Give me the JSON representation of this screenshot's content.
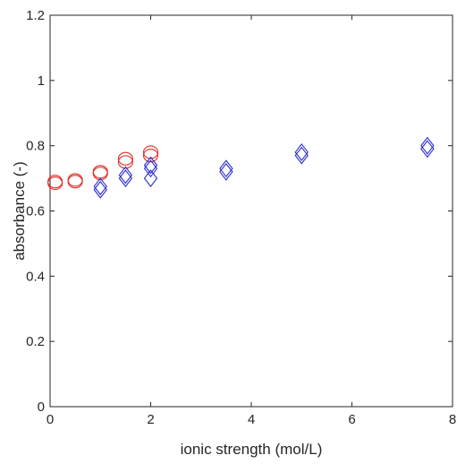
{
  "chart_data": {
    "type": "scatter",
    "xlabel": "ionic strength (mol/L)",
    "ylabel": "absorbance (-)",
    "xlim": [
      0,
      8
    ],
    "ylim": [
      0,
      1.2
    ],
    "xticks": [
      0,
      2,
      4,
      6,
      8
    ],
    "yticks": [
      0,
      0.2,
      0.4,
      0.6,
      0.8,
      1,
      1.2
    ],
    "xtick_labels": [
      "0",
      "2",
      "4",
      "6",
      "8"
    ],
    "ytick_labels": [
      "0",
      "0.2",
      "0.4",
      "0.6",
      "0.8",
      "1",
      "1.2"
    ],
    "grid": false,
    "legend": "none",
    "series": [
      {
        "color": "#e0302a",
        "marker": "circle",
        "points": [
          {
            "x": 0.1,
            "y": 0.685
          },
          {
            "x": 0.1,
            "y": 0.69
          },
          {
            "x": 0.5,
            "y": 0.69
          },
          {
            "x": 0.5,
            "y": 0.695
          },
          {
            "x": 1.0,
            "y": 0.715
          },
          {
            "x": 1.0,
            "y": 0.72
          },
          {
            "x": 1.5,
            "y": 0.75
          },
          {
            "x": 1.5,
            "y": 0.76
          },
          {
            "x": 2.0,
            "y": 0.77
          },
          {
            "x": 2.0,
            "y": 0.78
          }
        ]
      },
      {
        "color": "#2a2ad0",
        "marker": "diamond",
        "points": [
          {
            "x": 1.0,
            "y": 0.665
          },
          {
            "x": 1.0,
            "y": 0.675
          },
          {
            "x": 1.5,
            "y": 0.7
          },
          {
            "x": 1.5,
            "y": 0.71
          },
          {
            "x": 2.0,
            "y": 0.7
          },
          {
            "x": 2.0,
            "y": 0.73
          },
          {
            "x": 2.0,
            "y": 0.74
          },
          {
            "x": 3.5,
            "y": 0.72
          },
          {
            "x": 3.5,
            "y": 0.73
          },
          {
            "x": 5.0,
            "y": 0.77
          },
          {
            "x": 5.0,
            "y": 0.78
          },
          {
            "x": 7.5,
            "y": 0.79
          },
          {
            "x": 7.5,
            "y": 0.8
          }
        ]
      }
    ]
  }
}
